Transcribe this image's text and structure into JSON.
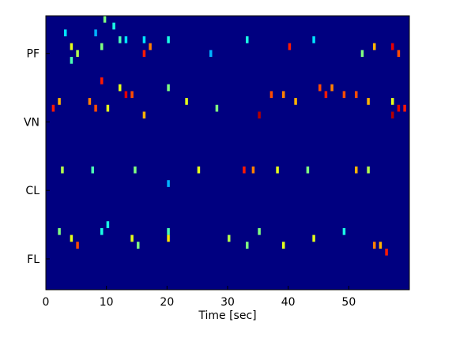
{
  "chart_data": {
    "type": "heatmap",
    "xlabel": "Time [sec]",
    "xlim": [
      0,
      60
    ],
    "xticks": [
      0,
      10,
      20,
      30,
      40,
      50
    ],
    "ylim": [
      0,
      40
    ],
    "y_inverted": true,
    "yticks": [
      {
        "value": 5.5,
        "label": "PF"
      },
      {
        "value": 15.5,
        "label": "VN"
      },
      {
        "value": 25.5,
        "label": "CL"
      },
      {
        "value": 35.5,
        "label": "FL"
      }
    ],
    "clim": [
      0,
      1
    ],
    "colormap": "jet",
    "x": [
      9.5,
      11,
      3,
      8,
      12,
      16,
      20,
      4,
      9,
      17,
      40,
      54,
      57,
      5,
      16,
      27,
      52,
      58,
      4,
      13,
      33,
      44,
      9,
      12,
      20,
      45,
      47,
      13,
      14,
      37,
      39,
      46,
      49,
      51,
      2,
      7,
      23,
      41,
      53,
      57,
      1,
      8,
      10,
      28,
      58,
      59,
      16,
      35,
      57,
      2.5,
      7.5,
      14.5,
      25,
      32.5,
      34,
      38,
      43,
      51,
      53,
      20,
      10,
      2,
      9,
      20,
      35,
      49,
      4,
      14,
      20,
      30,
      44,
      5,
      15,
      33,
      39,
      54,
      55,
      56
    ],
    "channels": [
      0,
      1,
      2,
      2,
      3,
      3,
      3,
      4,
      4,
      4,
      4,
      4,
      4,
      5,
      5,
      5,
      5,
      5,
      6,
      3,
      3,
      3,
      9,
      10,
      10,
      10,
      10,
      11,
      11,
      11,
      11,
      11,
      11,
      11,
      12,
      12,
      12,
      12,
      12,
      12,
      13,
      13,
      13,
      13,
      13,
      13,
      14,
      14,
      14,
      22,
      22,
      22,
      22,
      22,
      22,
      22,
      22,
      22,
      22,
      24,
      30,
      31,
      31,
      31,
      31,
      31,
      32,
      32,
      32,
      32,
      32,
      33,
      33,
      33,
      33,
      33,
      33,
      34
    ],
    "values": [
      0.5,
      0.4,
      0.35,
      0.3,
      0.45,
      0.35,
      0.4,
      0.6,
      0.5,
      0.75,
      0.85,
      0.7,
      0.9,
      0.55,
      0.85,
      0.3,
      0.5,
      0.8,
      0.45,
      0.35,
      0.4,
      0.35,
      0.85,
      0.6,
      0.5,
      0.8,
      0.75,
      0.9,
      0.8,
      0.8,
      0.75,
      0.85,
      0.8,
      0.8,
      0.7,
      0.75,
      0.6,
      0.7,
      0.7,
      0.6,
      0.85,
      0.8,
      0.6,
      0.5,
      0.9,
      0.85,
      0.7,
      0.95,
      0.95,
      0.55,
      0.45,
      0.5,
      0.6,
      0.85,
      0.75,
      0.6,
      0.5,
      0.7,
      0.55,
      0.3,
      0.4,
      0.5,
      0.4,
      0.45,
      0.5,
      0.4,
      0.6,
      0.6,
      0.65,
      0.55,
      0.6,
      0.8,
      0.5,
      0.5,
      0.6,
      0.75,
      0.7,
      0.85
    ]
  }
}
